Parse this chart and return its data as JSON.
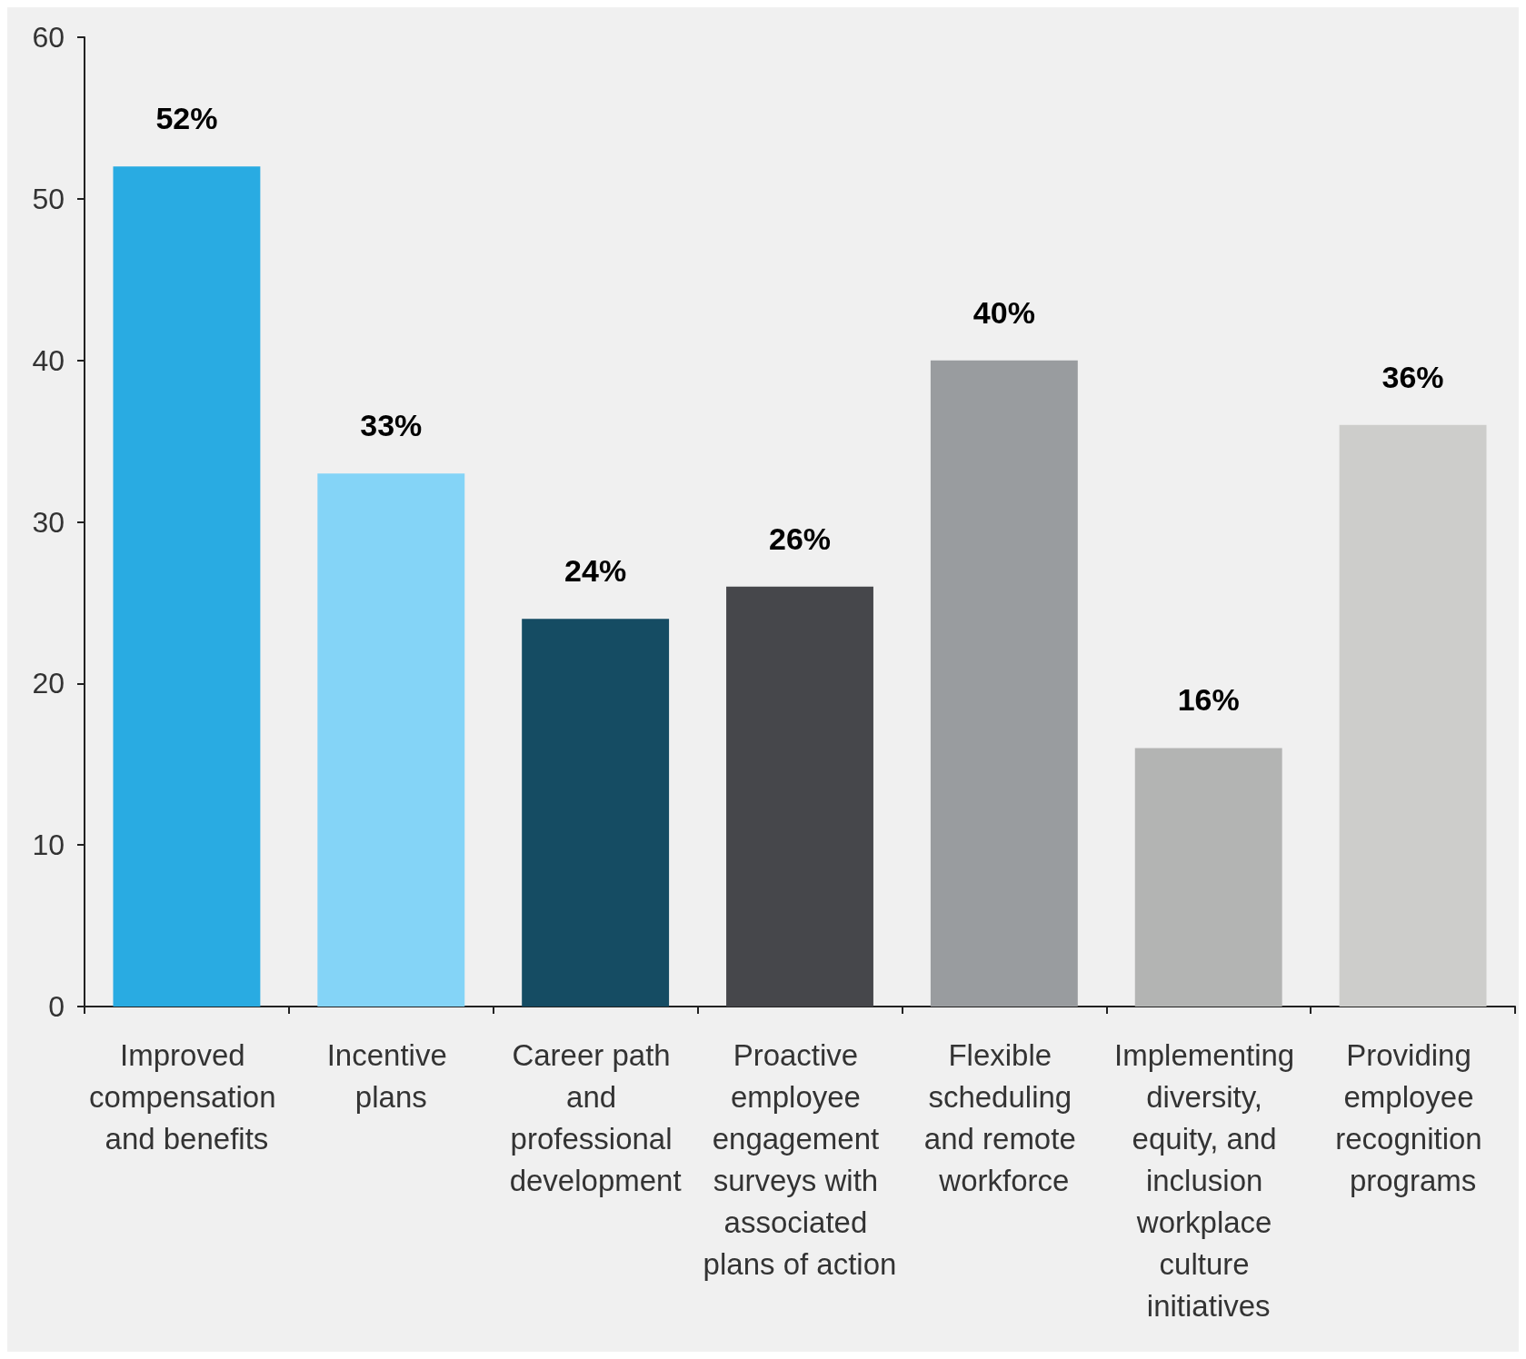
{
  "chart_data": {
    "type": "bar",
    "categories": [
      "Improved compensation and benefits",
      "Incentive plans",
      "Career path and professional development",
      "Proactive employee engagement surveys with associated plans of action",
      "Flexible scheduling and remote workforce",
      "Implementing diversity, equity, and inclusion workplace culture initiatives",
      "Providing employee recognition programs"
    ],
    "values": [
      52,
      33,
      24,
      26,
      40,
      16,
      36
    ],
    "value_labels": [
      "52%",
      "33%",
      "24%",
      "26%",
      "40%",
      "16%",
      "36%"
    ],
    "colors": [
      "#29abe2",
      "#84d4f7",
      "#154c63",
      "#46474b",
      "#999c9f",
      "#b3b4b3",
      "#cdcdcb"
    ],
    "ylim": [
      0,
      60
    ],
    "yticks": [
      0,
      10,
      20,
      30,
      40,
      50,
      60
    ],
    "grid": false
  }
}
